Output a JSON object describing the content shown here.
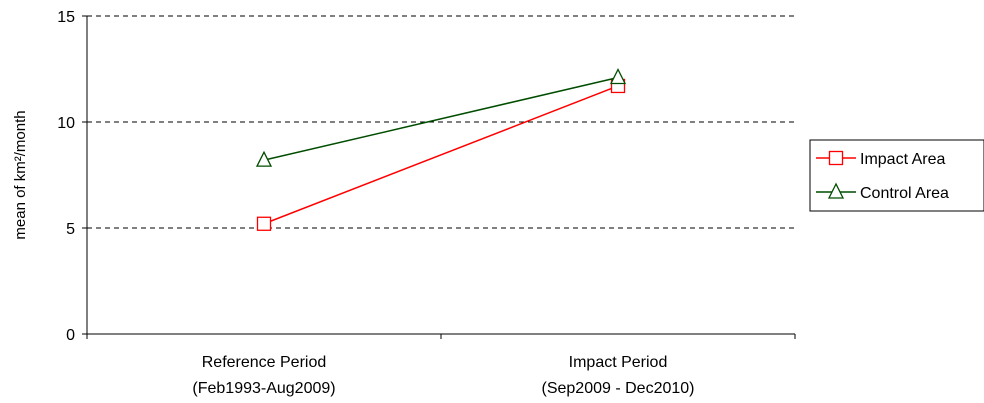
{
  "chart_data": {
    "type": "line",
    "categories": [
      [
        "Reference Period",
        "(Feb1993-Aug2009)"
      ],
      [
        "Impact Period",
        "(Sep2009 - Dec2010)"
      ]
    ],
    "series": [
      {
        "name": "Impact Area",
        "values": [
          5.2,
          11.7
        ],
        "color": "#ff0000",
        "marker": "square"
      },
      {
        "name": "Control Area",
        "values": [
          8.2,
          12.1
        ],
        "color": "#004d00",
        "marker": "triangle"
      }
    ],
    "ylabel": "mean of km²/month",
    "ylim": [
      0,
      15
    ],
    "yticks": [
      0,
      5,
      10,
      15
    ],
    "grid": "horizontal dashed",
    "legend_position": "right"
  }
}
